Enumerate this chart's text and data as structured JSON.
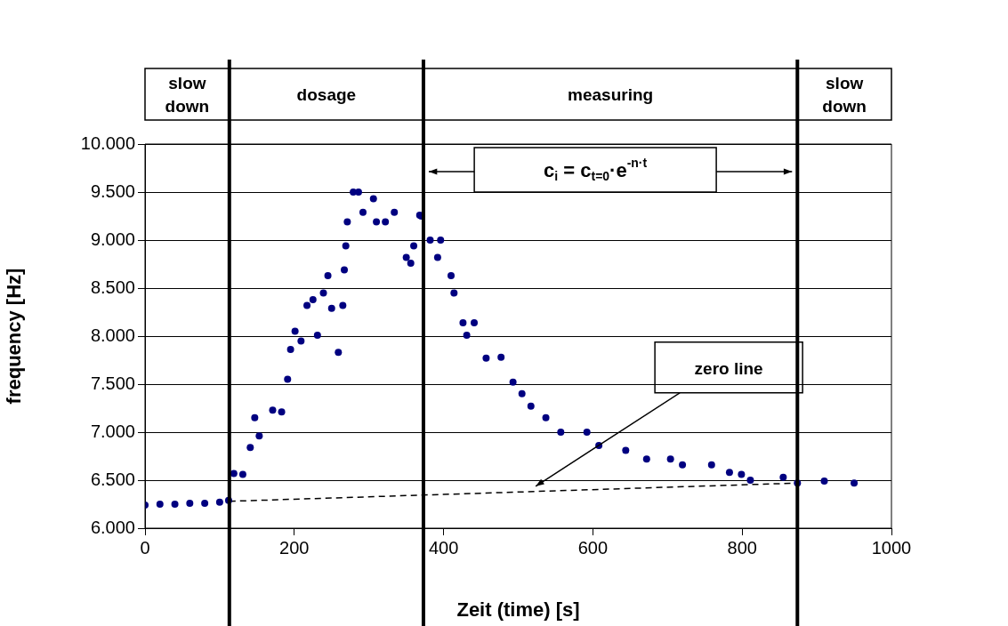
{
  "chart_data": {
    "type": "scatter",
    "xlabel": "Zeit (time) [s]",
    "ylabel": "frequency [Hz]",
    "xlim": [
      0,
      1000
    ],
    "xticks": [
      0,
      200,
      400,
      600,
      800,
      1000
    ],
    "ylim": [
      6000,
      10000
    ],
    "yticks": [
      {
        "value": 6000,
        "label": "6.000"
      },
      {
        "value": 6500,
        "label": "6.500"
      },
      {
        "value": 7000,
        "label": "7.000"
      },
      {
        "value": 7500,
        "label": "7.500"
      },
      {
        "value": 8000,
        "label": "8.000"
      },
      {
        "value": 8500,
        "label": "8.500"
      },
      {
        "value": 9000,
        "label": "9.000"
      },
      {
        "value": 9500,
        "label": "9.500"
      },
      {
        "value": 10000,
        "label": "10.000"
      }
    ],
    "grid": "y",
    "marker": "circle",
    "series": [
      {
        "color": "#000080",
        "x": [
          0,
          20,
          40,
          60,
          80,
          100,
          112,
          119,
          131,
          141,
          147,
          153,
          171,
          183,
          191,
          195,
          201,
          209,
          217,
          225,
          231,
          239,
          245,
          250,
          259,
          265,
          267,
          269,
          271,
          279,
          286,
          292,
          306,
          310,
          322,
          334,
          350,
          356,
          360,
          368,
          370,
          382,
          392,
          396,
          410,
          414,
          426,
          431,
          441,
          457,
          477,
          493,
          505,
          517,
          537,
          557,
          592,
          608,
          644,
          672,
          704,
          720,
          759,
          783,
          799,
          811,
          855,
          874,
          910,
          950
        ],
        "values": [
          6240,
          6250,
          6250,
          6260,
          6260,
          6270,
          6290,
          6570,
          6560,
          6840,
          7150,
          6960,
          7230,
          7210,
          7550,
          7860,
          8050,
          7950,
          8320,
          8380,
          8010,
          8450,
          8630,
          8290,
          7830,
          8320,
          8690,
          8940,
          9190,
          9500,
          9500,
          9290,
          9430,
          9190,
          9190,
          9290,
          8820,
          8760,
          8940,
          9260,
          9250,
          9000,
          8820,
          9000,
          8630,
          8450,
          8140,
          8010,
          8140,
          7770,
          7780,
          7520,
          7400,
          7270,
          7150,
          7000,
          7000,
          6860,
          6810,
          6720,
          6720,
          6660,
          6660,
          6580,
          6560,
          6500,
          6530,
          6470,
          6490,
          6470
        ]
      },
      {
        "type": "line",
        "color": "#000000",
        "line_style": "dashed",
        "marker": "none",
        "x": [
          113,
          874
        ],
        "values": [
          6280,
          6470
        ]
      }
    ],
    "ref_lines": [
      {
        "axis": "x",
        "value": 113
      },
      {
        "axis": "x",
        "value": 373
      },
      {
        "axis": "x",
        "value": 874
      }
    ],
    "annotations": [
      "slow down",
      "dosage",
      "measuring",
      "slow down",
      "c$_{i}$ = c$_{t=0}$·e$^{-n·t}$",
      {
        "text": "zero line",
        "x": 521,
        "y": 6400
      }
    ]
  }
}
